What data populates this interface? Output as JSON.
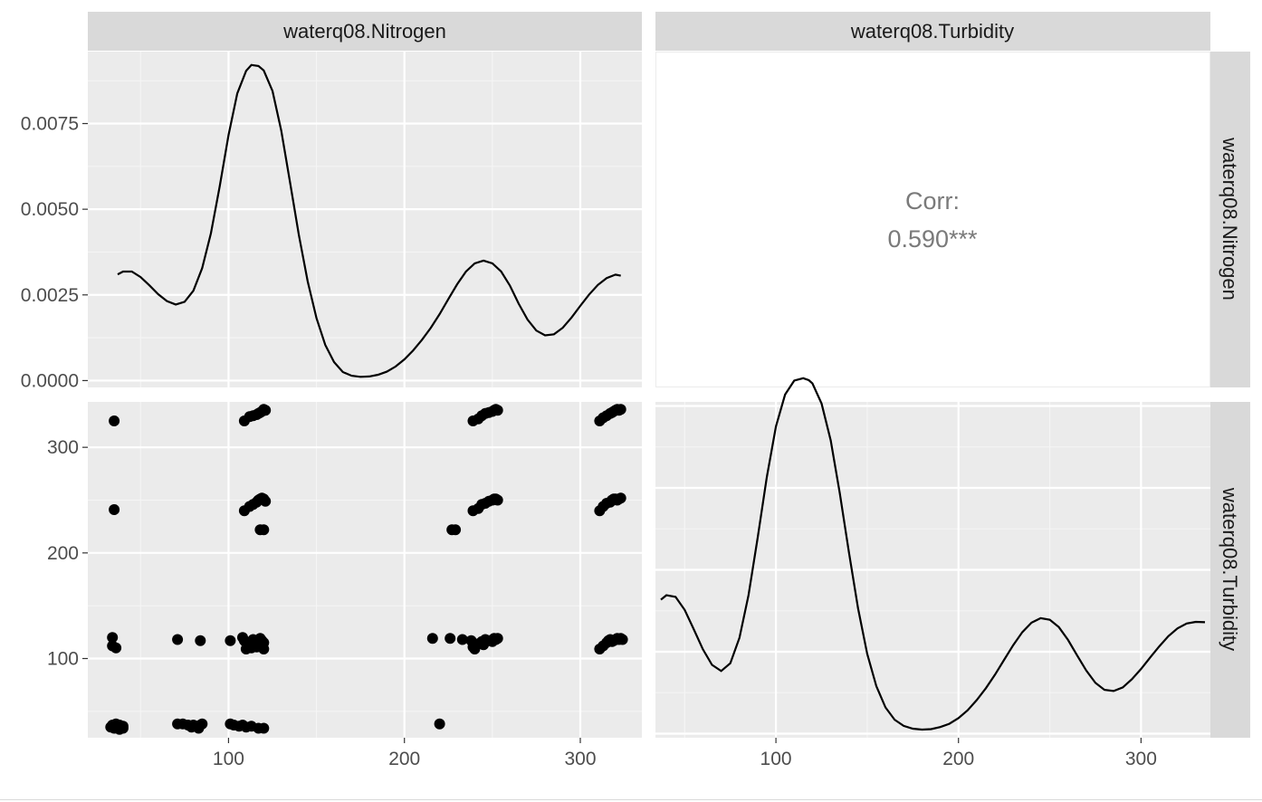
{
  "chart_data": {
    "type": "scatter",
    "variables": [
      "waterq08.Nitrogen",
      "waterq08.Turbidity"
    ],
    "panels": [
      {
        "position": "row1-col1",
        "type": "density",
        "variable": "waterq08.Nitrogen",
        "x_range": [
          20,
          335
        ],
        "y_range": [
          -0.0002,
          0.0096
        ],
        "y_ticks": [
          {
            "value": 0.0,
            "label": "0.0000"
          },
          {
            "value": 0.0025,
            "label": "0.0025"
          },
          {
            "value": 0.005,
            "label": "0.0050"
          },
          {
            "value": 0.0075,
            "label": "0.0075"
          }
        ],
        "x": [
          37,
          40,
          45,
          50,
          55,
          60,
          65,
          70,
          75,
          80,
          85,
          90,
          95,
          100,
          105,
          110,
          113,
          117,
          120,
          125,
          130,
          135,
          140,
          145,
          150,
          155,
          160,
          165,
          170,
          175,
          180,
          185,
          190,
          195,
          200,
          205,
          210,
          215,
          220,
          225,
          230,
          235,
          240,
          245,
          250,
          255,
          260,
          265,
          270,
          275,
          280,
          285,
          290,
          295,
          300,
          305,
          310,
          315,
          320,
          323
        ],
        "y": [
          0.0031,
          0.00318,
          0.00318,
          0.00302,
          0.00278,
          0.00252,
          0.00232,
          0.00222,
          0.0023,
          0.00262,
          0.00328,
          0.0043,
          0.00567,
          0.00716,
          0.00838,
          0.00904,
          0.00921,
          0.00918,
          0.00905,
          0.00845,
          0.00729,
          0.00578,
          0.00425,
          0.00289,
          0.00182,
          0.00104,
          0.00054,
          0.00025,
          0.00014,
          0.00011,
          0.00012,
          0.00017,
          0.00026,
          0.00041,
          0.00062,
          0.00088,
          0.00119,
          0.00154,
          0.00194,
          0.00238,
          0.00281,
          0.00318,
          0.00342,
          0.0035,
          0.00342,
          0.00318,
          0.00277,
          0.00224,
          0.00178,
          0.00146,
          0.00132,
          0.00135,
          0.00154,
          0.00184,
          0.00218,
          0.00251,
          0.00279,
          0.00299,
          0.00309,
          0.00306
        ]
      },
      {
        "position": "row1-col2",
        "type": "correlation",
        "label": "Corr:",
        "value": "0.590***"
      },
      {
        "position": "row2-col1",
        "type": "scatter",
        "x_var": "waterq08.Nitrogen",
        "y_var": "waterq08.Turbidity",
        "x_range": [
          20,
          335
        ],
        "y_range": [
          25,
          343
        ],
        "points": [
          [
            35,
            325
          ],
          [
            35,
            241
          ],
          [
            34,
            120
          ],
          [
            34,
            112
          ],
          [
            36,
            110
          ],
          [
            33,
            35
          ],
          [
            35,
            34
          ],
          [
            37,
            36
          ],
          [
            38,
            33
          ],
          [
            39,
            35
          ],
          [
            40,
            34
          ],
          [
            34,
            37
          ],
          [
            36,
            38
          ],
          [
            38,
            37
          ],
          [
            40,
            36
          ],
          [
            71,
            118
          ],
          [
            84,
            117
          ],
          [
            101,
            117
          ],
          [
            71,
            38
          ],
          [
            74,
            38
          ],
          [
            77,
            37
          ],
          [
            80,
            37
          ],
          [
            82,
            36
          ],
          [
            84,
            37
          ],
          [
            85,
            38
          ],
          [
            79,
            35
          ],
          [
            83,
            34
          ],
          [
            101,
            38
          ],
          [
            103,
            37
          ],
          [
            106,
            36
          ],
          [
            108,
            37
          ],
          [
            110,
            35
          ],
          [
            113,
            36
          ],
          [
            117,
            34
          ],
          [
            120,
            34
          ],
          [
            108,
            120
          ],
          [
            109,
            117
          ],
          [
            110,
            115
          ],
          [
            111,
            113
          ],
          [
            112,
            111
          ],
          [
            113,
            110
          ],
          [
            114,
            118
          ],
          [
            115,
            116
          ],
          [
            116,
            114
          ],
          [
            117,
            113
          ],
          [
            118,
            119
          ],
          [
            119,
            117
          ],
          [
            120,
            115
          ],
          [
            120,
            109
          ],
          [
            110,
            109
          ],
          [
            113,
            112
          ],
          [
            116,
            111
          ],
          [
            119,
            112
          ],
          [
            109,
            240
          ],
          [
            112,
            244
          ],
          [
            114,
            246
          ],
          [
            116,
            248
          ],
          [
            117,
            250
          ],
          [
            118,
            251
          ],
          [
            119,
            252
          ],
          [
            120,
            251
          ],
          [
            121,
            249
          ],
          [
            118,
            222
          ],
          [
            120,
            222
          ],
          [
            109,
            325
          ],
          [
            112,
            329
          ],
          [
            114,
            330
          ],
          [
            116,
            331
          ],
          [
            118,
            333
          ],
          [
            119,
            334
          ],
          [
            120,
            336
          ],
          [
            121,
            335
          ],
          [
            117,
            332
          ],
          [
            216,
            119
          ],
          [
            220,
            38
          ],
          [
            226,
            119
          ],
          [
            227,
            222
          ],
          [
            229,
            222
          ],
          [
            233,
            118
          ],
          [
            238,
            117
          ],
          [
            239,
            111
          ],
          [
            240,
            109
          ],
          [
            242,
            114
          ],
          [
            244,
            116
          ],
          [
            246,
            118
          ],
          [
            248,
            117
          ],
          [
            250,
            116
          ],
          [
            251,
            119
          ],
          [
            252,
            118
          ],
          [
            253,
            119
          ],
          [
            245,
            113
          ],
          [
            239,
            240
          ],
          [
            242,
            242
          ],
          [
            244,
            246
          ],
          [
            246,
            247
          ],
          [
            248,
            249
          ],
          [
            250,
            250
          ],
          [
            251,
            251
          ],
          [
            252,
            251
          ],
          [
            253,
            250
          ],
          [
            239,
            325
          ],
          [
            242,
            327
          ],
          [
            244,
            330
          ],
          [
            246,
            332
          ],
          [
            248,
            333
          ],
          [
            250,
            334
          ],
          [
            251,
            335
          ],
          [
            252,
            336
          ],
          [
            253,
            335
          ],
          [
            311,
            109
          ],
          [
            313,
            112
          ],
          [
            315,
            115
          ],
          [
            316,
            117
          ],
          [
            317,
            118
          ],
          [
            318,
            116
          ],
          [
            319,
            117
          ],
          [
            320,
            118
          ],
          [
            321,
            119
          ],
          [
            322,
            118
          ],
          [
            323,
            119
          ],
          [
            324,
            118
          ],
          [
            311,
            240
          ],
          [
            313,
            244
          ],
          [
            315,
            247
          ],
          [
            317,
            248
          ],
          [
            318,
            250
          ],
          [
            319,
            251
          ],
          [
            320,
            251
          ],
          [
            321,
            250
          ],
          [
            322,
            251
          ],
          [
            323,
            252
          ],
          [
            311,
            325
          ],
          [
            313,
            328
          ],
          [
            315,
            330
          ],
          [
            317,
            332
          ],
          [
            318,
            333
          ],
          [
            319,
            334
          ],
          [
            320,
            335
          ],
          [
            321,
            336
          ],
          [
            322,
            335
          ],
          [
            323,
            336
          ]
        ]
      },
      {
        "position": "row2-col2",
        "type": "density",
        "variable": "waterq08.Turbidity",
        "x_range": [
          34,
          338
        ],
        "y_range": [
          -0.0001,
          0.0081
        ],
        "x": [
          37,
          40,
          45,
          50,
          55,
          60,
          65,
          70,
          75,
          80,
          85,
          90,
          95,
          100,
          105,
          110,
          115,
          118,
          120,
          125,
          130,
          135,
          140,
          145,
          150,
          155,
          160,
          165,
          170,
          175,
          180,
          185,
          190,
          195,
          200,
          205,
          210,
          215,
          220,
          225,
          230,
          235,
          240,
          245,
          250,
          255,
          260,
          265,
          270,
          275,
          280,
          285,
          290,
          295,
          300,
          305,
          310,
          315,
          320,
          325,
          330,
          335
        ],
        "y": [
          0.00327,
          0.00338,
          0.00334,
          0.00302,
          0.00255,
          0.00206,
          0.00168,
          0.00153,
          0.00172,
          0.00234,
          0.00338,
          0.00478,
          0.00626,
          0.0075,
          0.00828,
          0.00862,
          0.00868,
          0.00863,
          0.00855,
          0.00806,
          0.00716,
          0.00586,
          0.00443,
          0.00306,
          0.00195,
          0.00116,
          0.00064,
          0.00034,
          0.00019,
          0.00012,
          0.0001,
          0.00011,
          0.00016,
          0.00024,
          0.00038,
          0.00057,
          0.00082,
          0.00111,
          0.00144,
          0.0018,
          0.00216,
          0.00248,
          0.00271,
          0.00282,
          0.00278,
          0.0026,
          0.00229,
          0.00191,
          0.00154,
          0.00124,
          0.00107,
          0.00104,
          0.00113,
          0.00133,
          0.00158,
          0.00186,
          0.00213,
          0.00238,
          0.00257,
          0.00269,
          0.00273,
          0.00272
        ]
      }
    ],
    "x_ticks_col1": [
      100,
      200,
      300
    ],
    "x_ticks_col2": [
      100,
      200,
      300
    ],
    "y_ticks_row2": [
      100,
      200,
      300
    ],
    "grid": true
  }
}
